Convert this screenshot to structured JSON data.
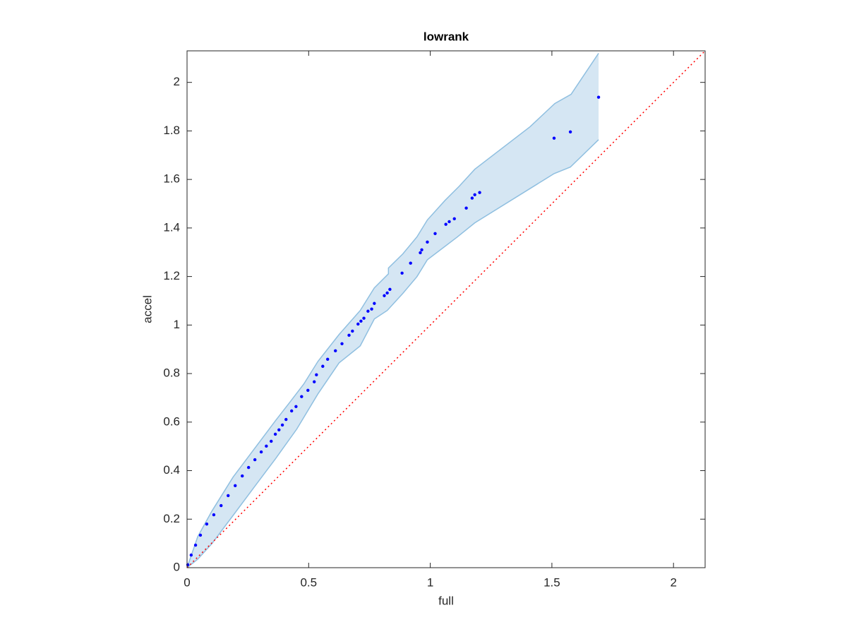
{
  "chart_data": {
    "type": "scatter",
    "title": "lowrank",
    "x_label": "full",
    "y_label": "accel",
    "x": [
      1.692,
      1.576,
      1.509,
      1.203,
      1.183,
      1.172,
      1.148,
      1.099,
      1.078,
      1.064,
      1.02,
      0.988,
      0.965,
      0.959,
      0.919,
      0.884,
      0.834,
      0.823,
      0.811,
      0.77,
      0.759,
      0.744,
      0.727,
      0.715,
      0.703,
      0.68,
      0.666,
      0.637,
      0.61,
      0.578,
      0.558,
      0.532,
      0.523,
      0.497,
      0.471,
      0.448,
      0.43,
      0.407,
      0.392,
      0.378,
      0.363,
      0.346,
      0.326,
      0.305,
      0.279,
      0.253,
      0.227,
      0.198,
      0.169,
      0.14,
      0.11,
      0.081,
      0.055,
      0.035,
      0.017,
      0.003
    ],
    "values": [
      1.939,
      1.796,
      1.77,
      1.546,
      1.537,
      1.523,
      1.482,
      1.438,
      1.426,
      1.415,
      1.377,
      1.342,
      1.31,
      1.298,
      1.255,
      1.214,
      1.147,
      1.132,
      1.121,
      1.089,
      1.066,
      1.057,
      1.028,
      1.016,
      1.004,
      0.975,
      0.958,
      0.923,
      0.894,
      0.859,
      0.83,
      0.795,
      0.766,
      0.731,
      0.705,
      0.664,
      0.646,
      0.611,
      0.588,
      0.568,
      0.55,
      0.521,
      0.501,
      0.477,
      0.445,
      0.413,
      0.378,
      0.338,
      0.297,
      0.256,
      0.218,
      0.18,
      0.134,
      0.093,
      0.052,
      0.012
    ],
    "color": "#0000ff",
    "band": {
      "color": "#8fbfe0",
      "fill": "#d5e6f3",
      "x_upper": [
        0,
        0.044,
        0.102,
        0.189,
        0.276,
        0.363,
        0.422,
        0.48,
        0.538,
        0.625,
        0.712,
        0.77,
        0.828,
        0.828,
        0.887,
        0.945,
        0.988,
        1.061,
        1.119,
        1.183,
        1.41,
        1.512,
        1.579,
        1.692
      ],
      "upper": [
        0,
        0.128,
        0.233,
        0.373,
        0.489,
        0.605,
        0.681,
        0.757,
        0.85,
        0.961,
        1.06,
        1.153,
        1.211,
        1.235,
        1.293,
        1.363,
        1.433,
        1.514,
        1.572,
        1.642,
        1.817,
        1.913,
        1.951,
        2.12
      ],
      "x_lower": [
        0,
        0.044,
        0.102,
        0.189,
        0.276,
        0.363,
        0.451,
        0.538,
        0.625,
        0.712,
        0.77,
        0.823,
        0.887,
        0.945,
        0.988,
        1.11,
        1.183,
        1.509,
        1.576,
        1.692
      ],
      "lower": [
        0,
        0.035,
        0.099,
        0.215,
        0.332,
        0.448,
        0.571,
        0.716,
        0.844,
        0.914,
        1.025,
        1.06,
        1.13,
        1.199,
        1.269,
        1.362,
        1.421,
        1.624,
        1.651,
        1.764
      ]
    },
    "reference": {
      "x": [
        0,
        2.13
      ],
      "values": [
        0,
        2.13
      ],
      "color": "#ff0000"
    },
    "xlim": [
      0,
      2.13
    ],
    "ylim": [
      0,
      2.13
    ],
    "xticks": [
      0,
      0.5,
      1,
      1.5,
      2
    ],
    "yticks": [
      0,
      0.2,
      0.4,
      0.6,
      0.8,
      1,
      1.2,
      1.4,
      1.6,
      1.8,
      2
    ],
    "grid": false
  }
}
